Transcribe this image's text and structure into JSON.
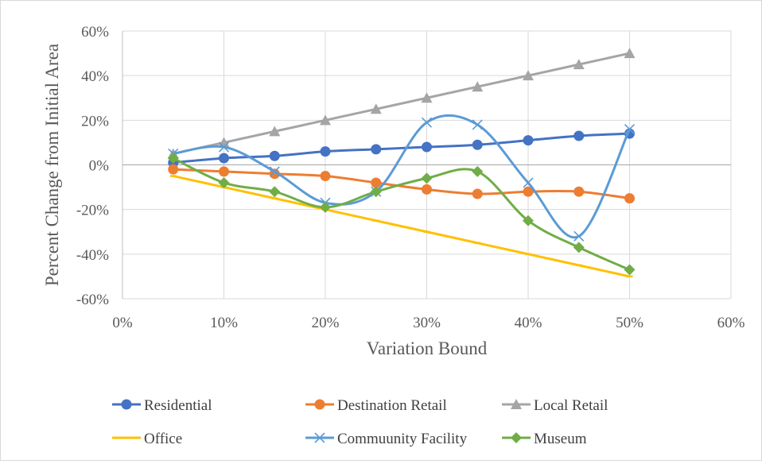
{
  "chart_data": {
    "type": "line",
    "title": "",
    "xlabel": "Variation Bound",
    "ylabel": "Percent Change from Initial Area",
    "x": [
      0.05,
      0.1,
      0.15,
      0.2,
      0.25,
      0.3,
      0.35,
      0.4,
      0.45,
      0.5
    ],
    "xlim": [
      0,
      0.6
    ],
    "ylim": [
      -0.6,
      0.6
    ],
    "x_ticks": [
      "0%",
      "10%",
      "20%",
      "30%",
      "40%",
      "50%",
      "60%"
    ],
    "y_ticks": [
      "60%",
      "40%",
      "20%",
      "0%",
      "-20%",
      "-40%",
      "-60%"
    ],
    "grid": true,
    "legend_position": "bottom",
    "series": [
      {
        "name": "Residential",
        "color": "#4472c4",
        "marker": "circle",
        "smooth": true,
        "values": [
          0.01,
          0.03,
          0.04,
          0.06,
          0.07,
          0.08,
          0.09,
          0.11,
          0.13,
          0.14
        ]
      },
      {
        "name": "Destination Retail",
        "color": "#ed7d31",
        "marker": "circle",
        "smooth": true,
        "values": [
          -0.02,
          -0.03,
          -0.04,
          -0.05,
          -0.08,
          -0.11,
          -0.13,
          -0.12,
          -0.12,
          -0.15
        ]
      },
      {
        "name": "Local Retail",
        "color": "#a5a5a5",
        "marker": "triangle",
        "smooth": true,
        "values": [
          0.05,
          0.1,
          0.15,
          0.2,
          0.25,
          0.3,
          0.35,
          0.4,
          0.45,
          0.5
        ]
      },
      {
        "name": "Office",
        "color": "#ffc000",
        "marker": "dash",
        "smooth": true,
        "values": [
          -0.05,
          -0.1,
          -0.15,
          -0.2,
          -0.25,
          -0.3,
          -0.35,
          -0.4,
          -0.45,
          -0.5
        ]
      },
      {
        "name": "Commuunity Facility",
        "color": "#5b9bd5",
        "marker": "x",
        "smooth": true,
        "values": [
          0.05,
          0.08,
          -0.03,
          -0.17,
          -0.12,
          0.19,
          0.18,
          -0.08,
          -0.32,
          0.16
        ]
      },
      {
        "name": "Museum",
        "color": "#70ad47",
        "marker": "diamond",
        "smooth": true,
        "values": [
          0.03,
          -0.08,
          -0.12,
          -0.19,
          -0.12,
          -0.06,
          -0.03,
          -0.25,
          -0.37,
          -0.47
        ]
      }
    ]
  }
}
